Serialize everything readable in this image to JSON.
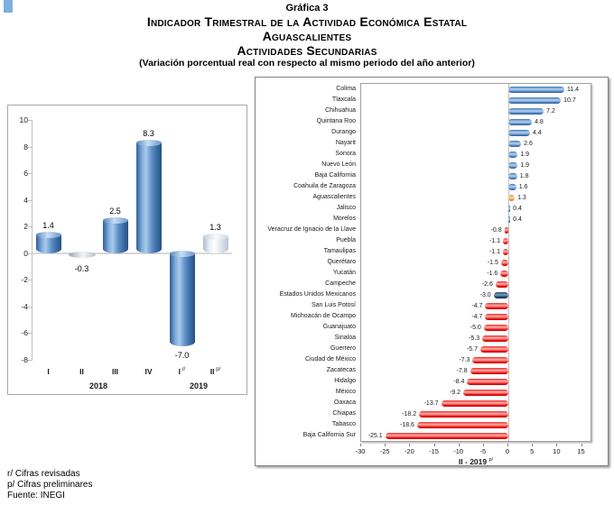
{
  "page": {
    "graphic_label": "Gráfica 3",
    "title_line1": "Indicador Trimestral de la Actividad Económica Estatal",
    "title_line2": "Aguascalientes",
    "title_line3": "Actividades Secundarias",
    "subtitle": "(Variación porcentual real con respecto al mismo periodo del año anterior)",
    "footnote_r": "r/ Cifras revisadas",
    "footnote_p": "p/ Cifras preliminares",
    "source": "Fuente: INEGI"
  },
  "colors": {
    "bar_blue": "#4f81bd",
    "bar_red": "#ee1c1c",
    "bar_orange": "#e8912d",
    "bar_navy": "#1f3f66",
    "bar_silver": "#c9ced4",
    "bar_white": "#f4f8fc",
    "corner_marker_blue": "#7eb0e0"
  },
  "chart_data": [
    {
      "type": "bar",
      "title": "ITAEE Aguascalientes, actividades secundarias, variación % trimestral",
      "categories": [
        {
          "label": "I",
          "sup": ""
        },
        {
          "label": "II",
          "sup": ""
        },
        {
          "label": "III",
          "sup": ""
        },
        {
          "label": "IV",
          "sup": ""
        },
        {
          "label": "I",
          "sup": "r/"
        },
        {
          "label": "II",
          "sup": "p/"
        }
      ],
      "values": [
        1.4,
        -0.3,
        2.5,
        8.3,
        -7.0,
        1.3
      ],
      "bar_styles": [
        "blue",
        "silver",
        "blue",
        "blue",
        "blue",
        "white"
      ],
      "year_groups": [
        {
          "label": "2018",
          "center_slot": 2
        },
        {
          "label": "2019",
          "center_slot": 5
        }
      ],
      "ylim": [
        -8,
        10
      ],
      "yticks": [
        10,
        8,
        6,
        4,
        2,
        0,
        -2,
        -4,
        -6,
        -8
      ],
      "grid": "zero-line-only",
      "legend": "none",
      "xlabel": "",
      "ylabel": ""
    },
    {
      "type": "bar",
      "orientation": "horizontal",
      "title": "ITAEE actividades secundarias por entidad federativa",
      "xlabel": {
        "text": "II - 2019",
        "sup": "p/"
      },
      "xlim": [
        -30,
        17
      ],
      "xticks": [
        -30,
        -25,
        -20,
        -15,
        -10,
        -5,
        0,
        5,
        10,
        15
      ],
      "grid": "zero-line-only",
      "legend": "none",
      "rows": [
        {
          "state": "Colima",
          "value": 11.4,
          "color": "blue"
        },
        {
          "state": "Tlaxcala",
          "value": 10.7,
          "color": "blue"
        },
        {
          "state": "Chihuahua",
          "value": 7.2,
          "color": "blue"
        },
        {
          "state": "Quintana Roo",
          "value": 4.8,
          "color": "blue"
        },
        {
          "state": "Durango",
          "value": 4.4,
          "color": "blue"
        },
        {
          "state": "Nayarit",
          "value": 2.6,
          "color": "blue"
        },
        {
          "state": "Sonora",
          "value": 1.9,
          "color": "blue"
        },
        {
          "state": "Nuevo León",
          "value": 1.9,
          "color": "blue"
        },
        {
          "state": "Baja California",
          "value": 1.8,
          "color": "blue"
        },
        {
          "state": "Coahuila de Zaragoza",
          "value": 1.6,
          "color": "blue"
        },
        {
          "state": "Aguascalientes",
          "value": 1.3,
          "color": "orange"
        },
        {
          "state": "Jalisco",
          "value": 0.4,
          "color": "blue"
        },
        {
          "state": "Morelos",
          "value": 0.4,
          "color": "blue"
        },
        {
          "state": "Veracruz de Ignacio de la Llave",
          "value": -0.8,
          "color": "red"
        },
        {
          "state": "Puebla",
          "value": -1.1,
          "color": "red"
        },
        {
          "state": "Tamaulipas",
          "value": -1.1,
          "color": "red"
        },
        {
          "state": "Querétaro",
          "value": -1.5,
          "color": "red"
        },
        {
          "state": "Yucatán",
          "value": -1.6,
          "color": "red"
        },
        {
          "state": "Campeche",
          "value": -2.6,
          "color": "red"
        },
        {
          "state": "Estados Unidos Mexicanos",
          "value": -3.0,
          "color": "navy"
        },
        {
          "state": "San Luis Potosí",
          "value": -4.7,
          "color": "red"
        },
        {
          "state": "Michoacán de Ocampo",
          "value": -4.7,
          "color": "red"
        },
        {
          "state": "Guanajuato",
          "value": -5.0,
          "color": "red"
        },
        {
          "state": "Sinaloa",
          "value": -5.3,
          "color": "red"
        },
        {
          "state": "Guerrero",
          "value": -5.7,
          "color": "red"
        },
        {
          "state": "Ciudad de México",
          "value": -7.3,
          "color": "red"
        },
        {
          "state": "Zacatecas",
          "value": -7.8,
          "color": "red"
        },
        {
          "state": "Hidalgo",
          "value": -8.4,
          "color": "red"
        },
        {
          "state": "México",
          "value": -9.2,
          "color": "red"
        },
        {
          "state": "Oaxaca",
          "value": -13.7,
          "color": "red"
        },
        {
          "state": "Chiapas",
          "value": -18.2,
          "color": "red"
        },
        {
          "state": "Tabasco",
          "value": -18.6,
          "color": "red"
        },
        {
          "state": "Baja California Sur",
          "value": -25.1,
          "color": "red"
        }
      ]
    }
  ]
}
